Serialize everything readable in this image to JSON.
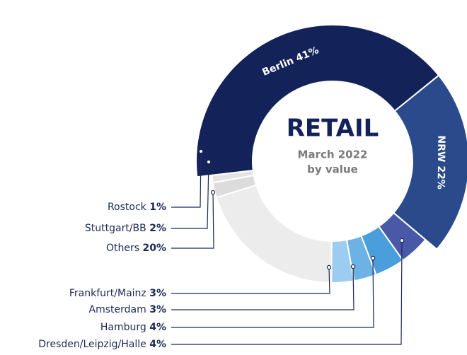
{
  "chart_data": {
    "type": "donut",
    "title": "RETAIL",
    "subtitle": "March 2022",
    "subtitle_2": "by value",
    "categories": [
      "Berlin",
      "NRW",
      "Dresden/Leipzig/Halle",
      "Hamburg",
      "Amsterdam",
      "Frankfurt/Mainz",
      "Others",
      "Stuttgart/BB",
      "Rostock"
    ],
    "values": [
      41,
      22,
      4,
      4,
      3,
      3,
      20,
      2,
      1
    ],
    "value_labels": [
      "41%",
      "22%",
      "4%",
      "4%",
      "3%",
      "3%",
      "20%",
      "2%",
      "1%"
    ],
    "colors": [
      "#13235a",
      "#2b4a8b",
      "#4a59a7",
      "#4a9edb",
      "#6db2e4",
      "#9ccdf0",
      "#ececec",
      "#dcdcdc",
      "#e4e4e4"
    ]
  }
}
